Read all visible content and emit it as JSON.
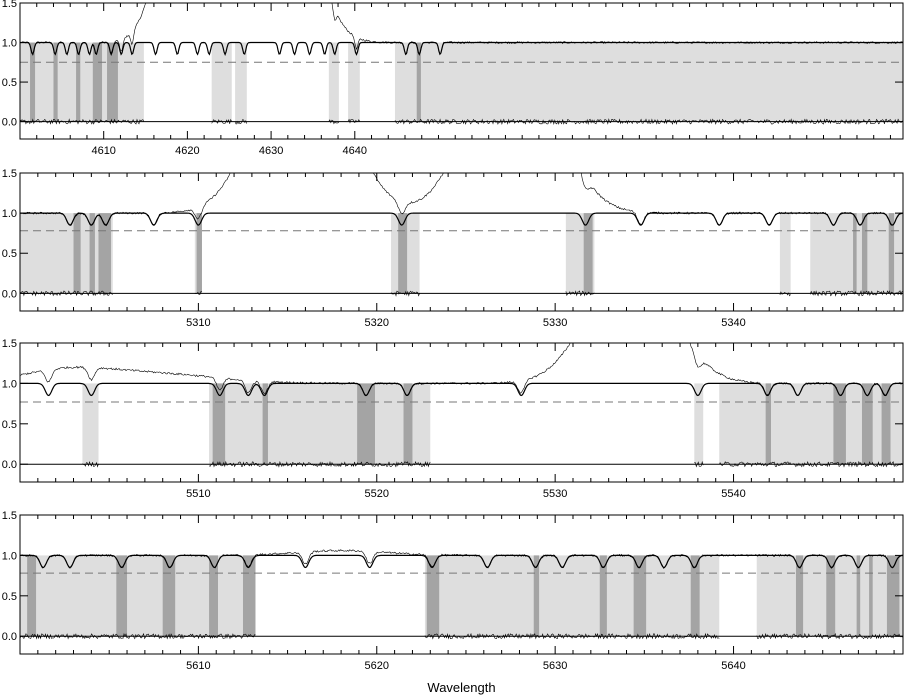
{
  "chart_data": [
    {
      "type": "line",
      "xlabel": "",
      "xlim": [
        4600,
        4705.5
      ],
      "ylim": [
        -0.22,
        1.5
      ],
      "x_ticks": [
        "4610",
        "4620",
        "4630",
        "4640"
      ],
      "x_tick_values": [
        4610,
        4620,
        4630,
        4640
      ],
      "y_ticks": [
        "0.0",
        "0.5",
        "1.0",
        "1.5"
      ],
      "y_tick_values": [
        0,
        0.5,
        1.0,
        1.5
      ],
      "threshold": 0.75,
      "fit_regions": [
        [
          4600,
          4614.8
        ],
        [
          4622.9,
          4625.3
        ],
        [
          4625.7,
          4627.1
        ],
        [
          4636.9,
          4638.1
        ],
        [
          4639.2,
          4640.6
        ],
        [
          4644.8,
          4705.5
        ]
      ],
      "masked_lines": [
        [
          4601.2,
          4601.8
        ],
        [
          4604.0,
          4604.5
        ],
        [
          4606.7,
          4607.2
        ],
        [
          4608.7,
          4609.8
        ],
        [
          4610.4,
          4611.7
        ],
        [
          4647.4,
          4647.9
        ]
      ],
      "model_dips": [
        4601.5,
        4604.2,
        4605.6,
        4607.0,
        4608.3,
        4609.1,
        4610.9,
        4612.1,
        4613.4,
        4616.2,
        4618.8,
        4621.2,
        4622.6,
        4624.5,
        4626.8,
        4631.0,
        4632.8,
        4634.6,
        4636.4,
        4637.6,
        4640.2,
        4646.1,
        4647.7,
        4650.2
      ],
      "emission_peaks": [
        [
          4619.5,
          2.2,
          2.6
        ],
        [
          4630.2,
          4.0,
          3.5
        ],
        [
          4622.3,
          0.5,
          1.2
        ]
      ]
    },
    {
      "type": "line",
      "xlabel": "",
      "xlim": [
        5300,
        5349.5
      ],
      "ylim": [
        -0.22,
        1.5
      ],
      "x_ticks": [
        "5310",
        "5320",
        "5330",
        "5340"
      ],
      "x_tick_values": [
        5310,
        5320,
        5330,
        5340
      ],
      "y_ticks": [
        "0.0",
        "0.5",
        "1.0",
        "1.5"
      ],
      "y_tick_values": [
        0,
        0.5,
        1.0,
        1.5
      ],
      "threshold": 0.78,
      "fit_regions": [
        [
          5300,
          5305.2
        ],
        [
          5309.8,
          5310.2
        ],
        [
          5320.8,
          5322.4
        ],
        [
          5330.6,
          5332.2
        ],
        [
          5342.6,
          5343.2
        ],
        [
          5344.3,
          5349.5
        ]
      ],
      "masked_lines": [
        [
          5303.0,
          5303.4
        ],
        [
          5303.9,
          5304.2
        ],
        [
          5304.4,
          5305.1
        ],
        [
          5309.9,
          5310.2
        ],
        [
          5321.2,
          5321.7
        ],
        [
          5331.6,
          5332.1
        ],
        [
          5346.7,
          5346.9
        ],
        [
          5347.2,
          5347.5
        ],
        [
          5348.7,
          5349.0
        ]
      ],
      "model_dips": [
        5302.8,
        5304.0,
        5304.8,
        5307.5,
        5310.0,
        5321.4,
        5331.7,
        5334.8,
        5339.2,
        5342.0,
        5345.6,
        5347.1,
        5348.9
      ],
      "emission_peaks": [
        [
          5315.8,
          2.6,
          2.2
        ],
        [
          5327.8,
          2.1,
          2.2
        ],
        [
          5326.8,
          0.4,
          2.0
        ]
      ]
    },
    {
      "type": "line",
      "xlabel": "",
      "xlim": [
        5500,
        5549.5
      ],
      "ylim": [
        -0.22,
        1.5
      ],
      "x_ticks": [
        "5510",
        "5520",
        "5530",
        "5540"
      ],
      "x_tick_values": [
        5510,
        5520,
        5530,
        5540
      ],
      "y_ticks": [
        "0.0",
        "0.5",
        "1.0",
        "1.5"
      ],
      "y_tick_values": [
        0,
        0.5,
        1.0,
        1.5
      ],
      "threshold": 0.77,
      "fit_regions": [
        [
          5503.5,
          5504.4
        ],
        [
          5510.6,
          5523.0
        ],
        [
          5537.8,
          5538.3
        ],
        [
          5539.2,
          5549.5
        ]
      ],
      "masked_lines": [
        [
          5510.8,
          5511.5
        ],
        [
          5513.6,
          5513.9
        ],
        [
          5518.9,
          5519.9
        ],
        [
          5521.5,
          5522.0
        ],
        [
          5541.8,
          5542.1
        ],
        [
          5545.6,
          5546.3
        ],
        [
          5547.2,
          5547.8
        ],
        [
          5548.3,
          5548.8
        ]
      ],
      "model_dips": [
        5501.6,
        5504.0,
        5511.2,
        5512.8,
        5513.7,
        5519.4,
        5521.7,
        5528.1,
        5538.0,
        5541.9,
        5543.6,
        5546.0,
        5547.5,
        5548.5
      ],
      "emission_peaks": [
        [
          5534.2,
          1.6,
          2.2
        ],
        [
          5502.5,
          0.15,
          2.5
        ],
        [
          5507.5,
          0.12,
          3.5
        ]
      ]
    },
    {
      "type": "line",
      "xlabel": "Wavelength",
      "xlim": [
        5600,
        5649.5
      ],
      "ylim": [
        -0.22,
        1.5
      ],
      "x_ticks": [
        "5610",
        "5620",
        "5630",
        "5640"
      ],
      "x_tick_values": [
        5610,
        5620,
        5630,
        5640
      ],
      "y_ticks": [
        "0.0",
        "0.5",
        "1.0",
        "1.5"
      ],
      "y_tick_values": [
        0,
        0.5,
        1.0,
        1.5
      ],
      "threshold": 0.78,
      "fit_regions": [
        [
          5600,
          5613.2
        ],
        [
          5622.7,
          5639.2
        ],
        [
          5641.3,
          5649.5
        ]
      ],
      "masked_lines": [
        [
          5600.4,
          5600.9
        ],
        [
          5605.4,
          5606.0
        ],
        [
          5608.0,
          5608.7
        ],
        [
          5610.6,
          5611.1
        ],
        [
          5612.5,
          5613.2
        ],
        [
          5622.8,
          5623.5
        ],
        [
          5628.8,
          5629.1
        ],
        [
          5632.5,
          5632.9
        ],
        [
          5634.4,
          5635.1
        ],
        [
          5637.6,
          5638.1
        ],
        [
          5643.5,
          5643.9
        ],
        [
          5645.2,
          5645.7
        ],
        [
          5646.9,
          5647.1
        ],
        [
          5647.6,
          5647.8
        ],
        [
          5648.6,
          5649.3
        ]
      ],
      "model_dips": [
        5601.3,
        5602.8,
        5605.7,
        5608.4,
        5610.9,
        5612.8,
        5616.0,
        5619.6,
        5623.1,
        5626.2,
        5628.9,
        5630.4,
        5632.7,
        5634.7,
        5636.1,
        5637.8,
        5643.7,
        5645.5,
        5647.0,
        5648.9
      ],
      "emission_peaks": [
        [
          5618.0,
          0.06,
          2.5
        ]
      ]
    }
  ]
}
